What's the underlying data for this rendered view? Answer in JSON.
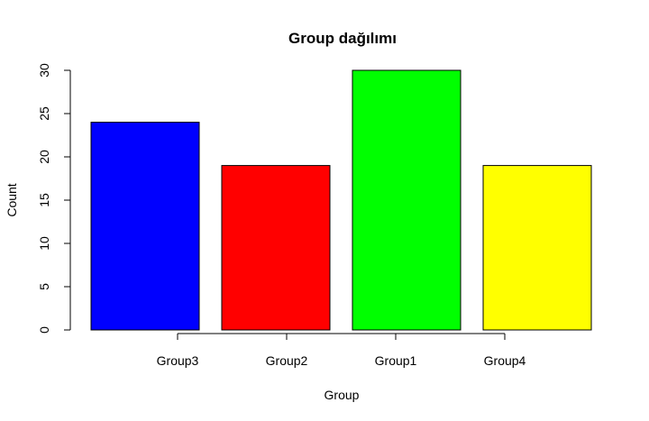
{
  "chart_data": {
    "type": "bar",
    "title": "Group dağılımı",
    "xlabel": "Group",
    "ylabel": "Count",
    "categories": [
      "Group3",
      "Group2",
      "Group1",
      "Group4"
    ],
    "values": [
      24,
      19,
      30,
      19
    ],
    "colors": [
      "#0000ff",
      "#ff0000",
      "#00ff00",
      "#ffff00"
    ],
    "ylim": [
      0,
      30
    ],
    "yticks": [
      0,
      5,
      10,
      15,
      20,
      25,
      30
    ],
    "grid": false,
    "legend": "none"
  }
}
